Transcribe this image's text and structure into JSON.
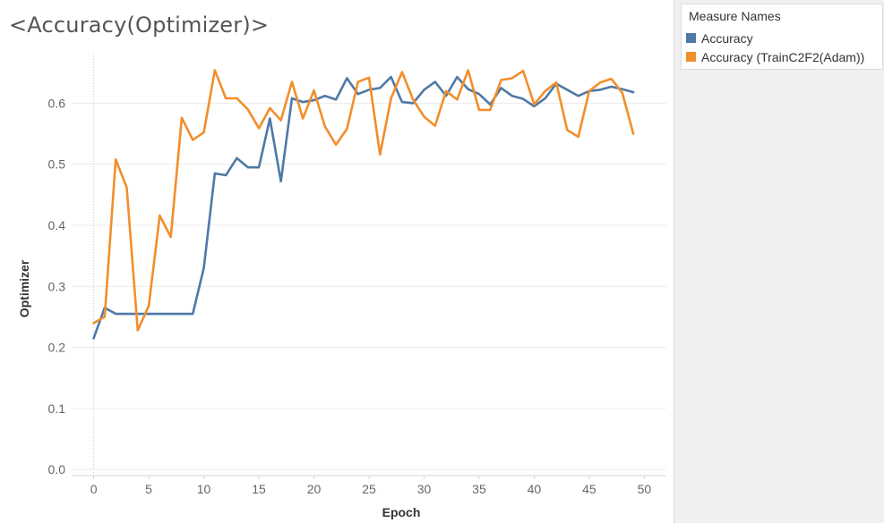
{
  "chart_data": {
    "type": "line",
    "title": "<Accuracy(Optimizer)>",
    "xlabel": "Epoch",
    "ylabel": "Optimizer",
    "xlim": [
      -2,
      52
    ],
    "ylim": [
      -0.01,
      0.69
    ],
    "xticks": [
      0,
      5,
      10,
      15,
      20,
      25,
      30,
      35,
      40,
      45,
      50
    ],
    "yticks": [
      0.0,
      0.1,
      0.2,
      0.3,
      0.4,
      0.5,
      0.6
    ],
    "ytick_labels": [
      "0.0",
      "0.1",
      "0.2",
      "0.3",
      "0.4",
      "0.5",
      "0.6"
    ],
    "grid": true,
    "legend_title": "Measure Names",
    "legend_placement": "right",
    "x": [
      0,
      1,
      2,
      3,
      4,
      5,
      6,
      7,
      8,
      9,
      10,
      11,
      12,
      13,
      14,
      15,
      16,
      17,
      18,
      19,
      20,
      21,
      22,
      23,
      24,
      25,
      26,
      27,
      28,
      29,
      30,
      31,
      32,
      33,
      34,
      35,
      36,
      37,
      38,
      39,
      40,
      41,
      42,
      43,
      44,
      45,
      46,
      47,
      48,
      49
    ],
    "series": [
      {
        "name": "Accuracy",
        "color": "#4e79a7",
        "values": [
          0.215,
          0.265,
          0.255,
          0.255,
          0.255,
          0.255,
          0.255,
          0.255,
          0.255,
          0.255,
          0.33,
          0.485,
          0.482,
          0.51,
          0.495,
          0.495,
          0.575,
          0.472,
          0.608,
          0.602,
          0.605,
          0.612,
          0.606,
          0.641,
          0.615,
          0.622,
          0.625,
          0.643,
          0.602,
          0.6,
          0.622,
          0.635,
          0.612,
          0.643,
          0.623,
          0.615,
          0.598,
          0.625,
          0.612,
          0.607,
          0.595,
          0.608,
          0.632,
          0.622,
          0.612,
          0.62,
          0.622,
          0.627,
          0.623,
          0.618
        ]
      },
      {
        "name": "Accuracy (TrainC2F2(Adam))",
        "color": "#f28e2b",
        "values": [
          0.24,
          0.25,
          0.508,
          0.462,
          0.228,
          0.268,
          0.416,
          0.381,
          0.576,
          0.54,
          0.552,
          0.654,
          0.608,
          0.608,
          0.59,
          0.559,
          0.592,
          0.572,
          0.635,
          0.575,
          0.621,
          0.562,
          0.532,
          0.558,
          0.635,
          0.642,
          0.516,
          0.608,
          0.651,
          0.606,
          0.578,
          0.563,
          0.62,
          0.606,
          0.654,
          0.589,
          0.589,
          0.638,
          0.641,
          0.653,
          0.598,
          0.62,
          0.634,
          0.556,
          0.545,
          0.62,
          0.634,
          0.64,
          0.617,
          0.55
        ]
      }
    ]
  }
}
